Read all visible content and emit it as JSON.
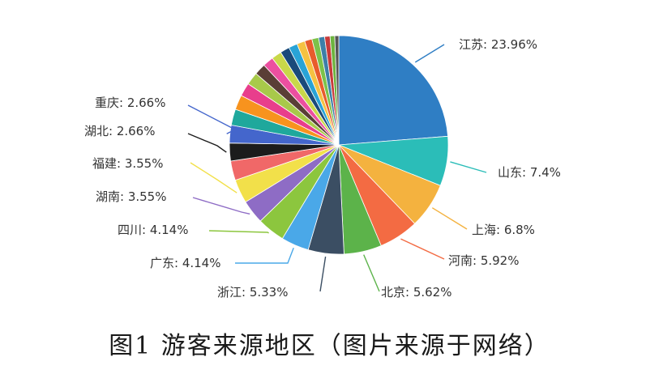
{
  "caption": "图1 游客来源地区（图片来源于网络）",
  "chart_data": {
    "type": "pie",
    "unit": "%",
    "slices": [
      {
        "label": "江苏",
        "value": 23.96,
        "color": "#2f7ec4",
        "shown": true
      },
      {
        "label": "山东",
        "value": 7.4,
        "color": "#2bbdb8",
        "shown": true
      },
      {
        "label": "上海",
        "value": 6.8,
        "color": "#f4b23f",
        "shown": true
      },
      {
        "label": "河南",
        "value": 5.92,
        "color": "#f36b43",
        "shown": true
      },
      {
        "label": "北京",
        "value": 5.62,
        "color": "#5cb34a",
        "shown": true
      },
      {
        "label": "浙江",
        "value": 5.33,
        "color": "#3b4e63",
        "shown": true
      },
      {
        "label": "广东",
        "value": 4.14,
        "color": "#4aa8e8",
        "shown": true
      },
      {
        "label": "四川",
        "value": 4.14,
        "color": "#8cc63e",
        "shown": true
      },
      {
        "label": "湖南",
        "value": 3.55,
        "color": "#8e6cc5",
        "shown": true
      },
      {
        "label": "福建",
        "value": 3.55,
        "color": "#f2e04a",
        "shown": true
      },
      {
        "label": "",
        "value": 2.9,
        "color": "#f06868",
        "shown": false
      },
      {
        "label": "湖北",
        "value": 2.66,
        "color": "#1c1c1c",
        "shown": true
      },
      {
        "label": "重庆",
        "value": 2.66,
        "color": "#4466cc",
        "shown": true
      },
      {
        "label": "",
        "value": 2.4,
        "color": "#1fa89c",
        "shown": false
      },
      {
        "label": "",
        "value": 2.2,
        "color": "#f7931e",
        "shown": false
      },
      {
        "label": "",
        "value": 2.0,
        "color": "#e83e8c",
        "shown": false
      },
      {
        "label": "",
        "value": 1.9,
        "color": "#a8c94a",
        "shown": false
      },
      {
        "label": "",
        "value": 1.7,
        "color": "#5a3e36",
        "shown": false
      },
      {
        "label": "",
        "value": 1.6,
        "color": "#ec4fa0",
        "shown": false
      },
      {
        "label": "",
        "value": 1.5,
        "color": "#c9d84a",
        "shown": false
      },
      {
        "label": "",
        "value": 1.4,
        "color": "#1a4a7a",
        "shown": false
      },
      {
        "label": "",
        "value": 1.3,
        "color": "#29a3d6",
        "shown": false
      },
      {
        "label": "",
        "value": 1.2,
        "color": "#f5c242",
        "shown": false
      },
      {
        "label": "",
        "value": 1.1,
        "color": "#e85c2c",
        "shown": false
      },
      {
        "label": "",
        "value": 1.0,
        "color": "#7cc24a",
        "shown": false
      },
      {
        "label": "",
        "value": 0.9,
        "color": "#3d7fa8",
        "shown": false
      },
      {
        "label": "",
        "value": 0.8,
        "color": "#c83a3a",
        "shown": false
      },
      {
        "label": "",
        "value": 0.7,
        "color": "#6db33f",
        "shown": false
      },
      {
        "label": "",
        "value": 0.6,
        "color": "#555555",
        "shown": false
      }
    ]
  }
}
